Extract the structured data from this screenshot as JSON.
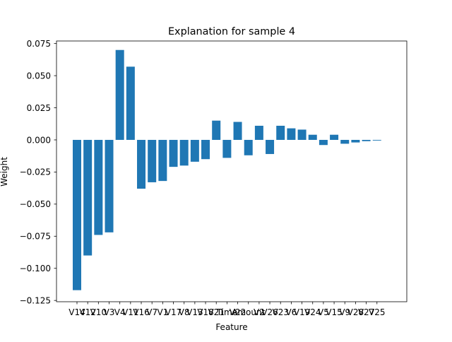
{
  "chart_data": {
    "type": "bar",
    "title": "Explanation for sample 4",
    "xlabel": "Feature",
    "ylabel": "Weight",
    "ylim": [
      -0.126,
      0.077
    ],
    "yticks": [
      -0.125,
      -0.1,
      -0.075,
      -0.05,
      -0.025,
      0.0,
      0.025,
      0.05,
      0.075
    ],
    "ytick_labels": [
      "−0.125",
      "−0.100",
      "−0.075",
      "−0.050",
      "−0.025",
      "0.000",
      "0.025",
      "0.050",
      "0.075"
    ],
    "categories": [
      "V14",
      "V12",
      "V10",
      "V3",
      "V4",
      "V11",
      "V16",
      "V7",
      "V1",
      "V17",
      "V8",
      "V13",
      "V18",
      "V21",
      "Time",
      "V22",
      "Amount",
      "V2",
      "V26",
      "V23",
      "V6",
      "V19",
      "V24",
      "V5",
      "V15",
      "V9",
      "V28",
      "V27",
      "V25"
    ],
    "values": [
      -0.117,
      -0.09,
      -0.074,
      -0.072,
      0.07,
      0.057,
      -0.038,
      -0.033,
      -0.032,
      -0.021,
      -0.02,
      -0.017,
      -0.015,
      0.015,
      -0.014,
      0.014,
      -0.012,
      0.011,
      -0.011,
      0.011,
      0.009,
      0.008,
      0.004,
      -0.004,
      0.004,
      -0.003,
      -0.002,
      -0.001,
      -0.0005
    ],
    "bar_color": "#1f77b4",
    "grid": false,
    "legend": "none"
  }
}
